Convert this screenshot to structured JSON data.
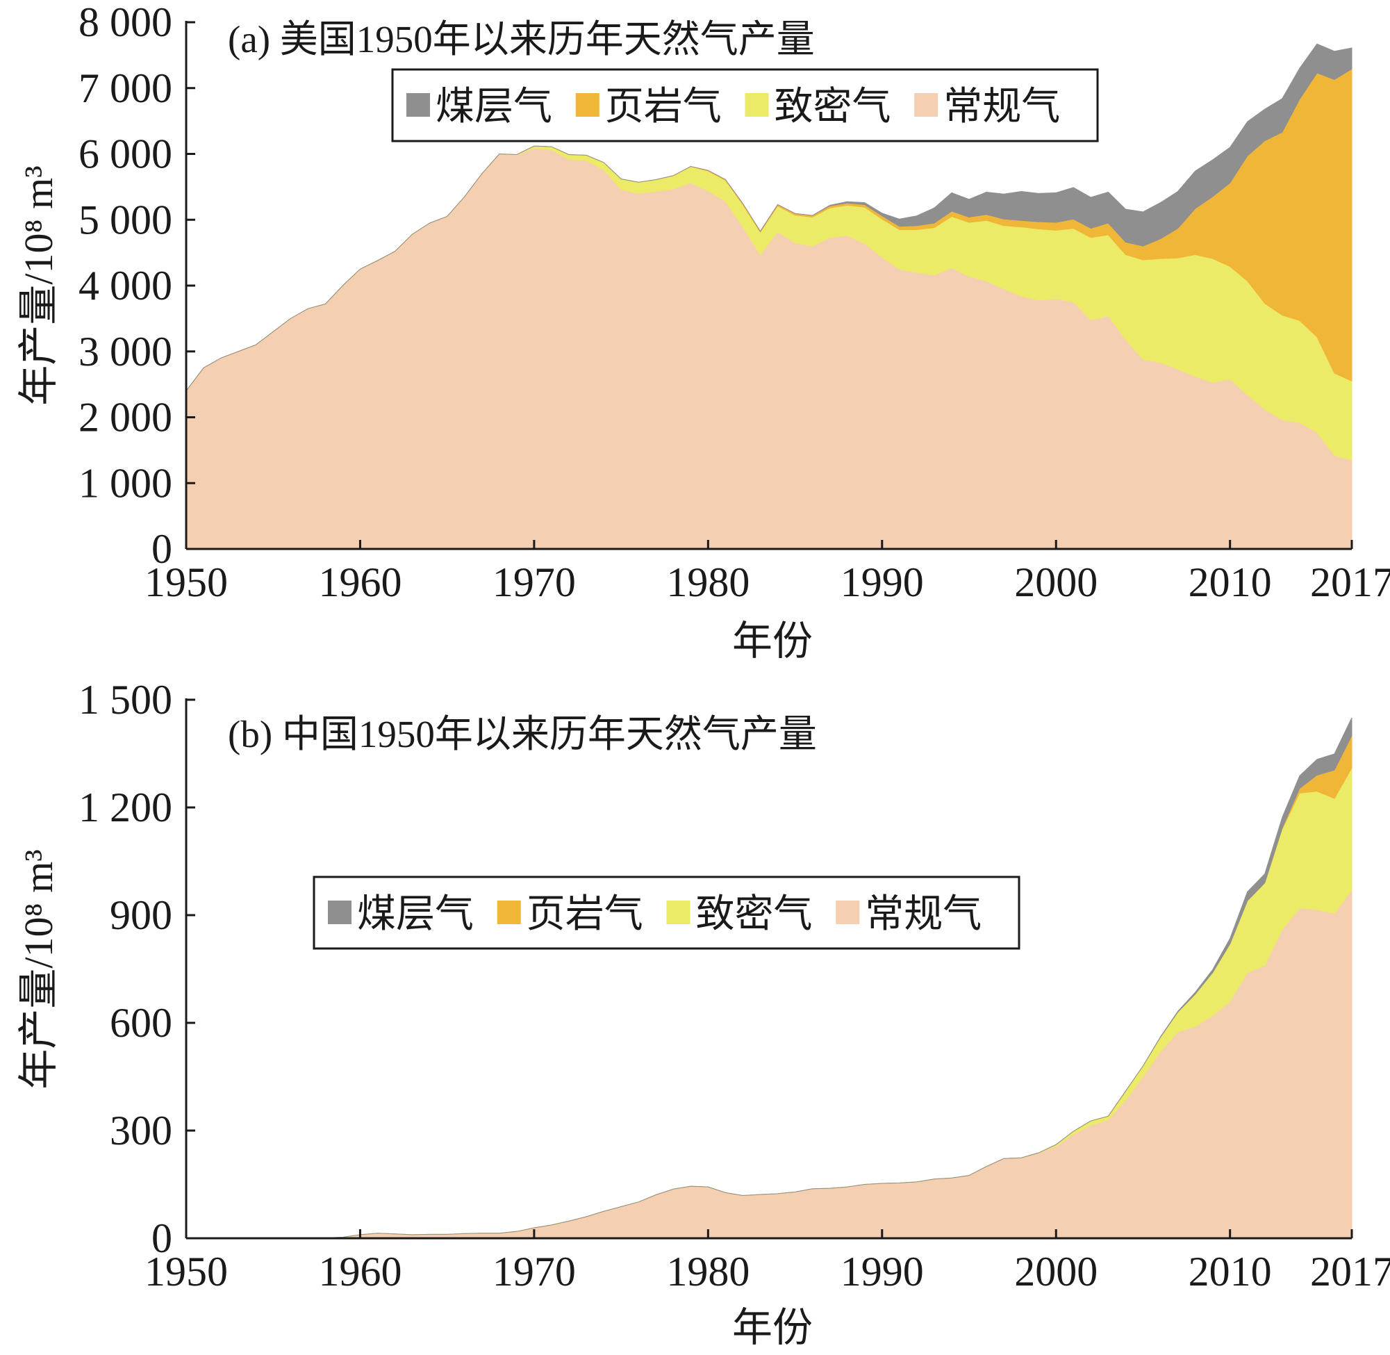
{
  "colors": {
    "coalbed": "#8f8f8f",
    "shale": "#f0b637",
    "tight": "#ebeb67",
    "conventional": "#f5cfb1",
    "axis": "#1a1a1a"
  },
  "chart_data": [
    {
      "type": "area",
      "stacked": true,
      "title": "(a) 美国1950年以来历年天然气产量",
      "xlabel": "年份",
      "ylabel": "年产量/10⁸ m³",
      "xlim": [
        1950,
        2017
      ],
      "ylim": [
        0,
        8000
      ],
      "x_ticks": [
        1950,
        1960,
        1970,
        1980,
        1990,
        2000,
        2010,
        2017
      ],
      "y_ticks": [
        0,
        1000,
        2000,
        3000,
        4000,
        5000,
        6000,
        7000,
        8000
      ],
      "y_tick_labels": [
        "0",
        "1 000",
        "2 000",
        "3 000",
        "4 000",
        "5 000",
        "6 000",
        "7 000",
        "8 000"
      ],
      "legend": [
        "煤层气",
        "页岩气",
        "致密气",
        "常规气"
      ],
      "legend_position": "top-center, framed",
      "grid": false,
      "x": [
        1950,
        1951,
        1952,
        1953,
        1954,
        1955,
        1956,
        1957,
        1958,
        1959,
        1960,
        1961,
        1962,
        1963,
        1964,
        1965,
        1966,
        1967,
        1968,
        1969,
        1970,
        1971,
        1972,
        1973,
        1974,
        1975,
        1976,
        1977,
        1978,
        1979,
        1980,
        1981,
        1982,
        1983,
        1984,
        1985,
        1986,
        1987,
        1988,
        1989,
        1990,
        1991,
        1992,
        1993,
        1994,
        1995,
        1996,
        1997,
        1998,
        1999,
        2000,
        2001,
        2002,
        2003,
        2004,
        2005,
        2006,
        2007,
        2008,
        2009,
        2010,
        2011,
        2012,
        2013,
        2014,
        2015,
        2016,
        2017
      ],
      "series": [
        {
          "name": "常规气",
          "color_key": "conventional",
          "values": [
            2400,
            2750,
            2900,
            3000,
            3100,
            3300,
            3500,
            3650,
            3720,
            4000,
            4250,
            4380,
            4520,
            4780,
            4950,
            5050,
            5350,
            5700,
            6000,
            5980,
            6090,
            6060,
            5920,
            5900,
            5760,
            5460,
            5400,
            5430,
            5470,
            5560,
            5440,
            5280,
            4890,
            4470,
            4820,
            4650,
            4600,
            4730,
            4760,
            4640,
            4430,
            4250,
            4200,
            4160,
            4270,
            4140,
            4070,
            3950,
            3840,
            3780,
            3800,
            3750,
            3480,
            3540,
            3180,
            2880,
            2830,
            2730,
            2620,
            2530,
            2580,
            2340,
            2120,
            1960,
            1920,
            1770,
            1420,
            1350
          ]
        },
        {
          "name": "致密气",
          "color_key": "tight",
          "values": [
            0,
            0,
            0,
            0,
            0,
            0,
            0,
            0,
            0,
            0,
            0,
            0,
            0,
            0,
            0,
            0,
            0,
            0,
            0,
            10,
            30,
            50,
            70,
            80,
            110,
            160,
            170,
            180,
            200,
            250,
            300,
            320,
            340,
            340,
            390,
            420,
            440,
            450,
            460,
            550,
            580,
            600,
            650,
            720,
            780,
            820,
            920,
            960,
            1050,
            1080,
            1040,
            1120,
            1250,
            1230,
            1290,
            1510,
            1580,
            1690,
            1850,
            1880,
            1710,
            1730,
            1610,
            1590,
            1550,
            1450,
            1250,
            1200
          ]
        },
        {
          "name": "页岩气",
          "color_key": "shale",
          "values": [
            0,
            0,
            0,
            0,
            0,
            0,
            0,
            0,
            0,
            0,
            0,
            0,
            0,
            0,
            0,
            0,
            0,
            0,
            0,
            0,
            0,
            0,
            0,
            0,
            0,
            0,
            0,
            0,
            0,
            0,
            10,
            10,
            15,
            15,
            20,
            25,
            25,
            30,
            35,
            40,
            50,
            50,
            60,
            70,
            80,
            80,
            90,
            100,
            100,
            110,
            120,
            140,
            140,
            180,
            190,
            210,
            300,
            450,
            700,
            940,
            1270,
            1900,
            2470,
            2780,
            3360,
            4010,
            4460,
            4740
          ]
        },
        {
          "name": "煤层气",
          "color_key": "coalbed",
          "values": [
            0,
            0,
            0,
            0,
            0,
            0,
            0,
            0,
            0,
            0,
            0,
            0,
            0,
            0,
            0,
            0,
            0,
            0,
            0,
            0,
            0,
            0,
            0,
            0,
            0,
            0,
            0,
            0,
            0,
            0,
            0,
            0,
            0,
            0,
            0,
            0,
            0,
            10,
            20,
            30,
            40,
            110,
            150,
            230,
            280,
            270,
            340,
            380,
            440,
            430,
            450,
            480,
            470,
            470,
            500,
            520,
            550,
            560,
            570,
            560,
            540,
            520,
            480,
            510,
            470,
            440,
            430,
            320
          ]
        }
      ]
    },
    {
      "type": "area",
      "stacked": true,
      "title": "(b) 中国1950年以来历年天然气产量",
      "xlabel": "年份",
      "ylabel": "年产量/10⁸ m³",
      "xlim": [
        1950,
        2017
      ],
      "ylim": [
        0,
        1500
      ],
      "x_ticks": [
        1950,
        1960,
        1970,
        1980,
        1990,
        2000,
        2010,
        2017
      ],
      "y_ticks": [
        0,
        300,
        600,
        900,
        1200,
        1500
      ],
      "y_tick_labels": [
        "0",
        "300",
        "600",
        "900",
        "1 200",
        "1 500"
      ],
      "legend": [
        "煤层气",
        "页岩气",
        "致密气",
        "常规气"
      ],
      "legend_position": "center-left, framed",
      "grid": false,
      "x": [
        1950,
        1951,
        1952,
        1953,
        1954,
        1955,
        1956,
        1957,
        1958,
        1959,
        1960,
        1961,
        1962,
        1963,
        1964,
        1965,
        1966,
        1967,
        1968,
        1969,
        1970,
        1971,
        1972,
        1973,
        1974,
        1975,
        1976,
        1977,
        1978,
        1979,
        1980,
        1981,
        1982,
        1983,
        1984,
        1985,
        1986,
        1987,
        1988,
        1989,
        1990,
        1991,
        1992,
        1993,
        1994,
        1995,
        1996,
        1997,
        1998,
        1999,
        2000,
        2001,
        2002,
        2003,
        2004,
        2005,
        2006,
        2007,
        2008,
        2009,
        2010,
        2011,
        2012,
        2013,
        2014,
        2015,
        2016,
        2017
      ],
      "series": [
        {
          "name": "常规气",
          "color_key": "conventional",
          "values": [
            0,
            0,
            0,
            0,
            0,
            0,
            0,
            0,
            1,
            3,
            10,
            14,
            12,
            10,
            11,
            11,
            13,
            14,
            14,
            19,
            29,
            37,
            48,
            60,
            75,
            88,
            101,
            121,
            137,
            145,
            143,
            127,
            119,
            122,
            124,
            129,
            138,
            139,
            143,
            150,
            153,
            154,
            157,
            165,
            168,
            175,
            200,
            222,
            224,
            238,
            256,
            290,
            315,
            330,
            385,
            450,
            520,
            575,
            590,
            620,
            660,
            740,
            760,
            860,
            920,
            915,
            905,
            970
          ]
        },
        {
          "name": "致密气",
          "color_key": "tight",
          "values": [
            0,
            0,
            0,
            0,
            0,
            0,
            0,
            0,
            0,
            0,
            0,
            0,
            0,
            0,
            0,
            0,
            0,
            0,
            0,
            0,
            0,
            0,
            0,
            0,
            0,
            0,
            0,
            0,
            0,
            0,
            0,
            0,
            0,
            0,
            0,
            0,
            0,
            0,
            0,
            0,
            0,
            0,
            0,
            0,
            0,
            0,
            0,
            0,
            0,
            0,
            5,
            8,
            12,
            10,
            25,
            30,
            40,
            55,
            90,
            120,
            160,
            200,
            230,
            280,
            320,
            330,
            320,
            340
          ]
        },
        {
          "name": "页岩气",
          "color_key": "shale",
          "values": [
            0,
            0,
            0,
            0,
            0,
            0,
            0,
            0,
            0,
            0,
            0,
            0,
            0,
            0,
            0,
            0,
            0,
            0,
            0,
            0,
            0,
            0,
            0,
            0,
            0,
            0,
            0,
            0,
            0,
            0,
            0,
            0,
            0,
            0,
            0,
            0,
            0,
            0,
            0,
            0,
            0,
            0,
            0,
            0,
            0,
            0,
            0,
            0,
            0,
            0,
            0,
            0,
            0,
            0,
            0,
            0,
            0,
            0,
            0,
            0,
            0,
            0,
            0,
            2,
            13,
            45,
            79,
            90
          ]
        },
        {
          "name": "煤层气",
          "color_key": "coalbed",
          "values": [
            0,
            0,
            0,
            0,
            0,
            0,
            0,
            0,
            0,
            0,
            0,
            0,
            0,
            0,
            0,
            0,
            0,
            0,
            0,
            0,
            0,
            0,
            0,
            0,
            0,
            0,
            0,
            0,
            0,
            0,
            0,
            0,
            0,
            0,
            0,
            0,
            0,
            0,
            0,
            0,
            0,
            0,
            0,
            0,
            0,
            0,
            0,
            0,
            0,
            0,
            0,
            0,
            0,
            0,
            0,
            0,
            1,
            2,
            5,
            8,
            15,
            25,
            25,
            30,
            35,
            44,
            45,
            50
          ]
        }
      ]
    }
  ]
}
